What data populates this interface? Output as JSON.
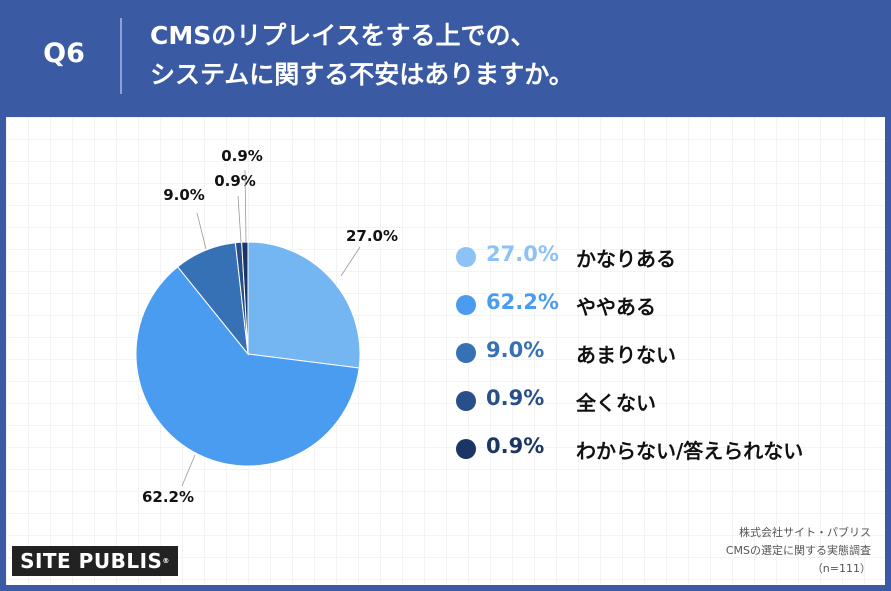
{
  "header": {
    "question": "Q6",
    "title_line1": "CMSのリプレイスをする上での、",
    "title_line2": "システムに関する不安はありますか。"
  },
  "chart_data": {
    "type": "pie",
    "slices": [
      {
        "label": "かなりある",
        "value": 27.0,
        "value_label": "27.0%",
        "color": "#73b6f2"
      },
      {
        "label": "ややある",
        "value": 62.2,
        "value_label": "62.2%",
        "color": "#4a9cf0"
      },
      {
        "label": "あまりない",
        "value": 9.0,
        "value_label": "9.0%",
        "color": "#3670b5"
      },
      {
        "label": "全くない",
        "value": 0.9,
        "value_label": "0.9%",
        "color": "#284f89"
      },
      {
        "label": "わからない/答えられない",
        "value": 0.9,
        "value_label": "0.9%",
        "color": "#1b3564"
      }
    ]
  },
  "legend": {
    "items": [
      {
        "pct": "27.0%",
        "label": "かなりある",
        "color": "#8cc2f5"
      },
      {
        "pct": "62.2%",
        "label": "ややある",
        "color": "#4a9cf0"
      },
      {
        "pct": "9.0%",
        "label": "あまりない",
        "color": "#3670b5"
      },
      {
        "pct": "0.9%",
        "label": "全くない",
        "color": "#284f89"
      },
      {
        "pct": "0.9%",
        "label": "わからない/答えられない",
        "color": "#1b3564"
      }
    ]
  },
  "logo": {
    "text": "SITE PUBLIS",
    "mark": "®"
  },
  "source": {
    "line1": "株式会社サイト・パブリス",
    "line2": "CMSの選定に関する実態調査",
    "line3": "（n=111）"
  }
}
